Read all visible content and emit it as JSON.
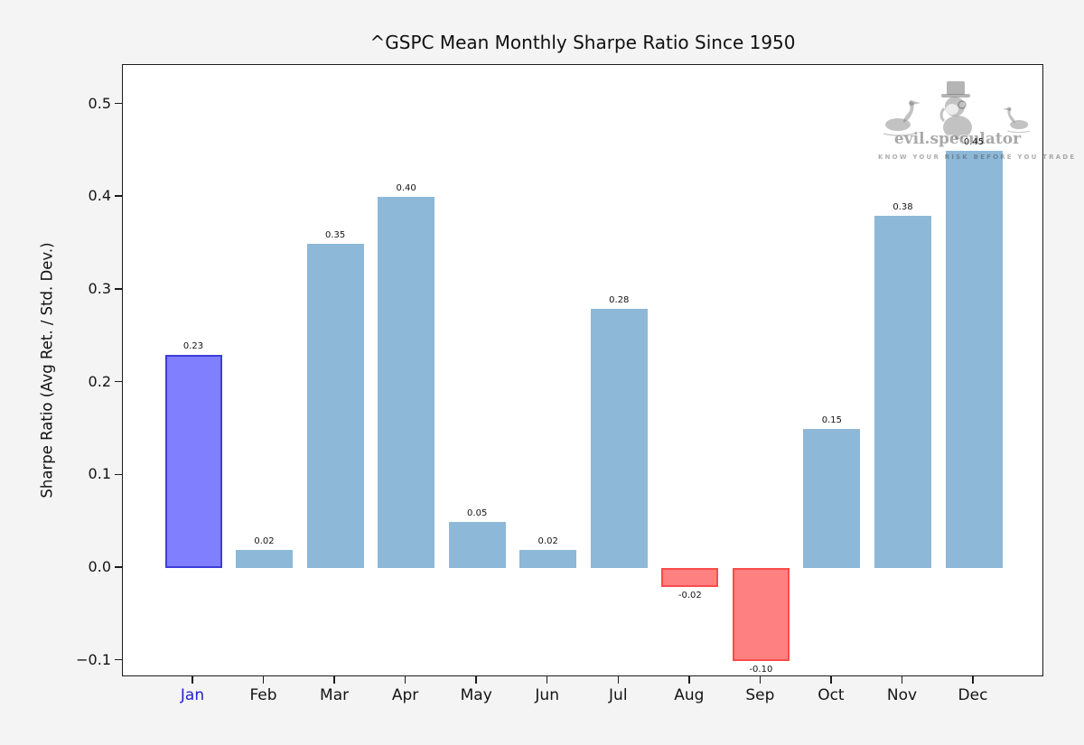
{
  "chart_data": {
    "type": "bar",
    "title": "^GSPC Mean Monthly Sharpe Ratio Since 1950",
    "ylabel": "Sharpe Ratio (Avg Ret. / Std. Dev.)",
    "xlabel": "",
    "categories": [
      "Jan",
      "Feb",
      "Mar",
      "Apr",
      "May",
      "Jun",
      "Jul",
      "Aug",
      "Sep",
      "Oct",
      "Nov",
      "Dec"
    ],
    "values": [
      0.23,
      0.02,
      0.35,
      0.4,
      0.05,
      0.02,
      0.28,
      -0.02,
      -0.1,
      0.15,
      0.38,
      0.45
    ],
    "bar_labels": [
      "0.23",
      "0.02",
      "0.35",
      "0.40",
      "0.05",
      "0.02",
      "0.28",
      "-0.02",
      "-0.10",
      "0.15",
      "0.38",
      "0.45"
    ],
    "bar_roles": [
      "highlight",
      "default",
      "default",
      "default",
      "default",
      "default",
      "default",
      "negative",
      "negative",
      "default",
      "default",
      "default"
    ],
    "y_tick_values": [
      0.5,
      0.4,
      0.3,
      0.2,
      0.1,
      0.0,
      -0.1
    ],
    "y_tick_labels": [
      "0.5",
      "0.4",
      "0.3",
      "0.2",
      "0.1",
      "0.0",
      "−0.1"
    ],
    "ylim": [
      -0.1178,
      0.5424
    ],
    "grid": false,
    "legend": "none",
    "highlighted_category": "Jan",
    "highlighted_category_index": 0,
    "colors": {
      "background": "#f4f4f4",
      "plot_background": "#ffffff",
      "bar_default": "#8db8d8",
      "bar_highlight_fill": "#8080ff",
      "bar_highlight_edge": "#3d3ddd",
      "bar_negative_fill": "#ff8080",
      "bar_negative_edge": "#fb4b4b",
      "x_tick_highlight": "#2121cd"
    }
  },
  "watermark": {
    "brand": "evil.speculator",
    "tagline": "KNOW YOUR RISK BEFORE YOU TRADE"
  }
}
